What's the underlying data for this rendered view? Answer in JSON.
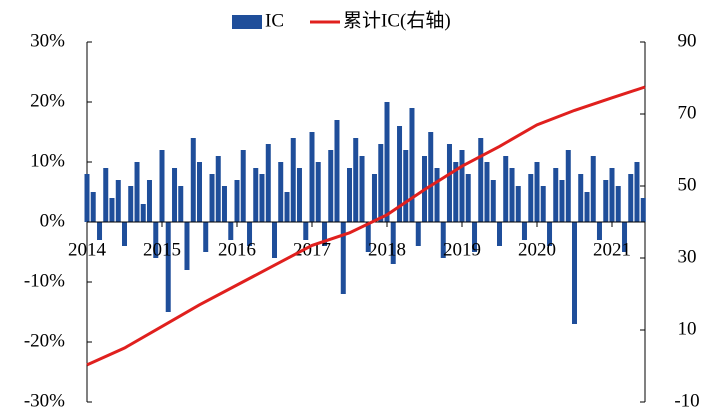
{
  "chart_data": {
    "type": "bar",
    "series": [
      {
        "name": "IC",
        "type": "bar",
        "color": "#1f4e9a",
        "x": [
          2014,
          2014.083,
          2014.167,
          2014.25,
          2014.333,
          2014.417,
          2014.5,
          2014.583,
          2014.667,
          2014.75,
          2014.833,
          2014.917,
          2015,
          2015.083,
          2015.167,
          2015.25,
          2015.333,
          2015.417,
          2015.5,
          2015.583,
          2015.667,
          2015.75,
          2015.833,
          2015.917,
          2016,
          2016.083,
          2016.167,
          2016.25,
          2016.333,
          2016.417,
          2016.5,
          2016.583,
          2016.667,
          2016.75,
          2016.833,
          2016.917,
          2017,
          2017.083,
          2017.167,
          2017.25,
          2017.333,
          2017.417,
          2017.5,
          2017.583,
          2017.667,
          2017.75,
          2017.833,
          2017.917,
          2018,
          2018.083,
          2018.167,
          2018.25,
          2018.333,
          2018.417,
          2018.5,
          2018.583,
          2018.667,
          2018.75,
          2018.833,
          2018.917,
          2019,
          2019.083,
          2019.167,
          2019.25,
          2019.333,
          2019.417,
          2019.5,
          2019.583,
          2019.667,
          2019.75,
          2019.833,
          2019.917,
          2020,
          2020.083,
          2020.167,
          2020.25,
          2020.333,
          2020.417,
          2020.5,
          2020.583,
          2020.667,
          2020.75,
          2020.833,
          2020.917,
          2021,
          2021.083,
          2021.167,
          2021.25,
          2021.333,
          2021.417
        ],
        "values": [
          8,
          5,
          -3,
          9,
          4,
          7,
          -4,
          6,
          10,
          3,
          7,
          -6,
          12,
          -15,
          9,
          6,
          -8,
          14,
          10,
          -5,
          8,
          11,
          6,
          -3,
          7,
          12,
          -4,
          9,
          8,
          13,
          -6,
          10,
          5,
          14,
          9,
          -3,
          15,
          10,
          -4,
          12,
          17,
          -12,
          9,
          14,
          11,
          -5,
          8,
          13,
          20,
          -7,
          16,
          12,
          19,
          -4,
          11,
          15,
          9,
          -6,
          13,
          10,
          12,
          8,
          -5,
          14,
          10,
          7,
          -4,
          11,
          9,
          6,
          -3,
          8,
          10,
          6,
          -4,
          9,
          7,
          12,
          -17,
          8,
          5,
          11,
          -3,
          7,
          9,
          6,
          -5,
          8,
          10,
          4
        ]
      },
      {
        "name": "累计IC(右轴)",
        "type": "line",
        "axis": "y2",
        "color": "#e0201e",
        "x": [
          2014,
          2014.5,
          2015,
          2015.5,
          2016,
          2016.5,
          2017,
          2017.5,
          2018,
          2018.5,
          2019,
          2019.5,
          2020,
          2020.5,
          2021,
          2021.44
        ],
        "values": [
          0.3,
          5,
          11,
          17,
          22.5,
          28,
          33.5,
          37,
          42,
          49,
          55.5,
          61,
          67,
          71,
          74.5,
          77.5
        ]
      }
    ],
    "xlim": [
      2014,
      2021.44
    ],
    "xticks": [
      2014,
      2015,
      2016,
      2017,
      2018,
      2019,
      2020,
      2021
    ],
    "ylim": [
      -30,
      30
    ],
    "yticks": [
      {
        "value": -30,
        "label": "-30%"
      },
      {
        "value": -20,
        "label": "-20%"
      },
      {
        "value": -10,
        "label": "-10%"
      },
      {
        "value": 0,
        "label": "0%"
      },
      {
        "value": 10,
        "label": "10%"
      },
      {
        "value": 20,
        "label": "20%"
      },
      {
        "value": 30,
        "label": "30%"
      }
    ],
    "y2lim": [
      -10,
      90
    ],
    "y2ticks": [
      -10,
      10,
      30,
      50,
      70,
      90
    ],
    "legend": "top"
  }
}
